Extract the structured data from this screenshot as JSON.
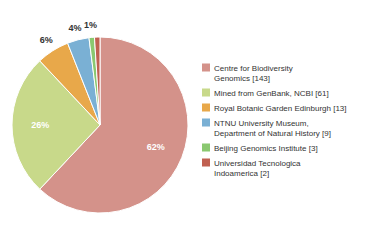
{
  "chart_data": {
    "type": "pie",
    "categories": [
      "Centre for Biodiversity\nGenomics [143]",
      "Mined from GenBank, NCBI [61]",
      "Royal Botanic Garden Edinburgh [13]",
      "NTNU University Museum,\nDepartment of Natural History [9]",
      "Beijing Genomics Institute [3]",
      "Universidad Tecnologica\nIndoamerica [2]"
    ],
    "values": [
      62,
      26,
      6,
      4,
      1,
      1
    ],
    "value_labels": [
      "62%",
      "26%",
      "6%",
      "4%",
      "1%",
      null
    ],
    "colors": [
      "#d4928a",
      "#c8d98a",
      "#e8a84a",
      "#7ab0d4",
      "#8ac870",
      "#c06050"
    ],
    "data_labels": true,
    "legend": "right"
  }
}
